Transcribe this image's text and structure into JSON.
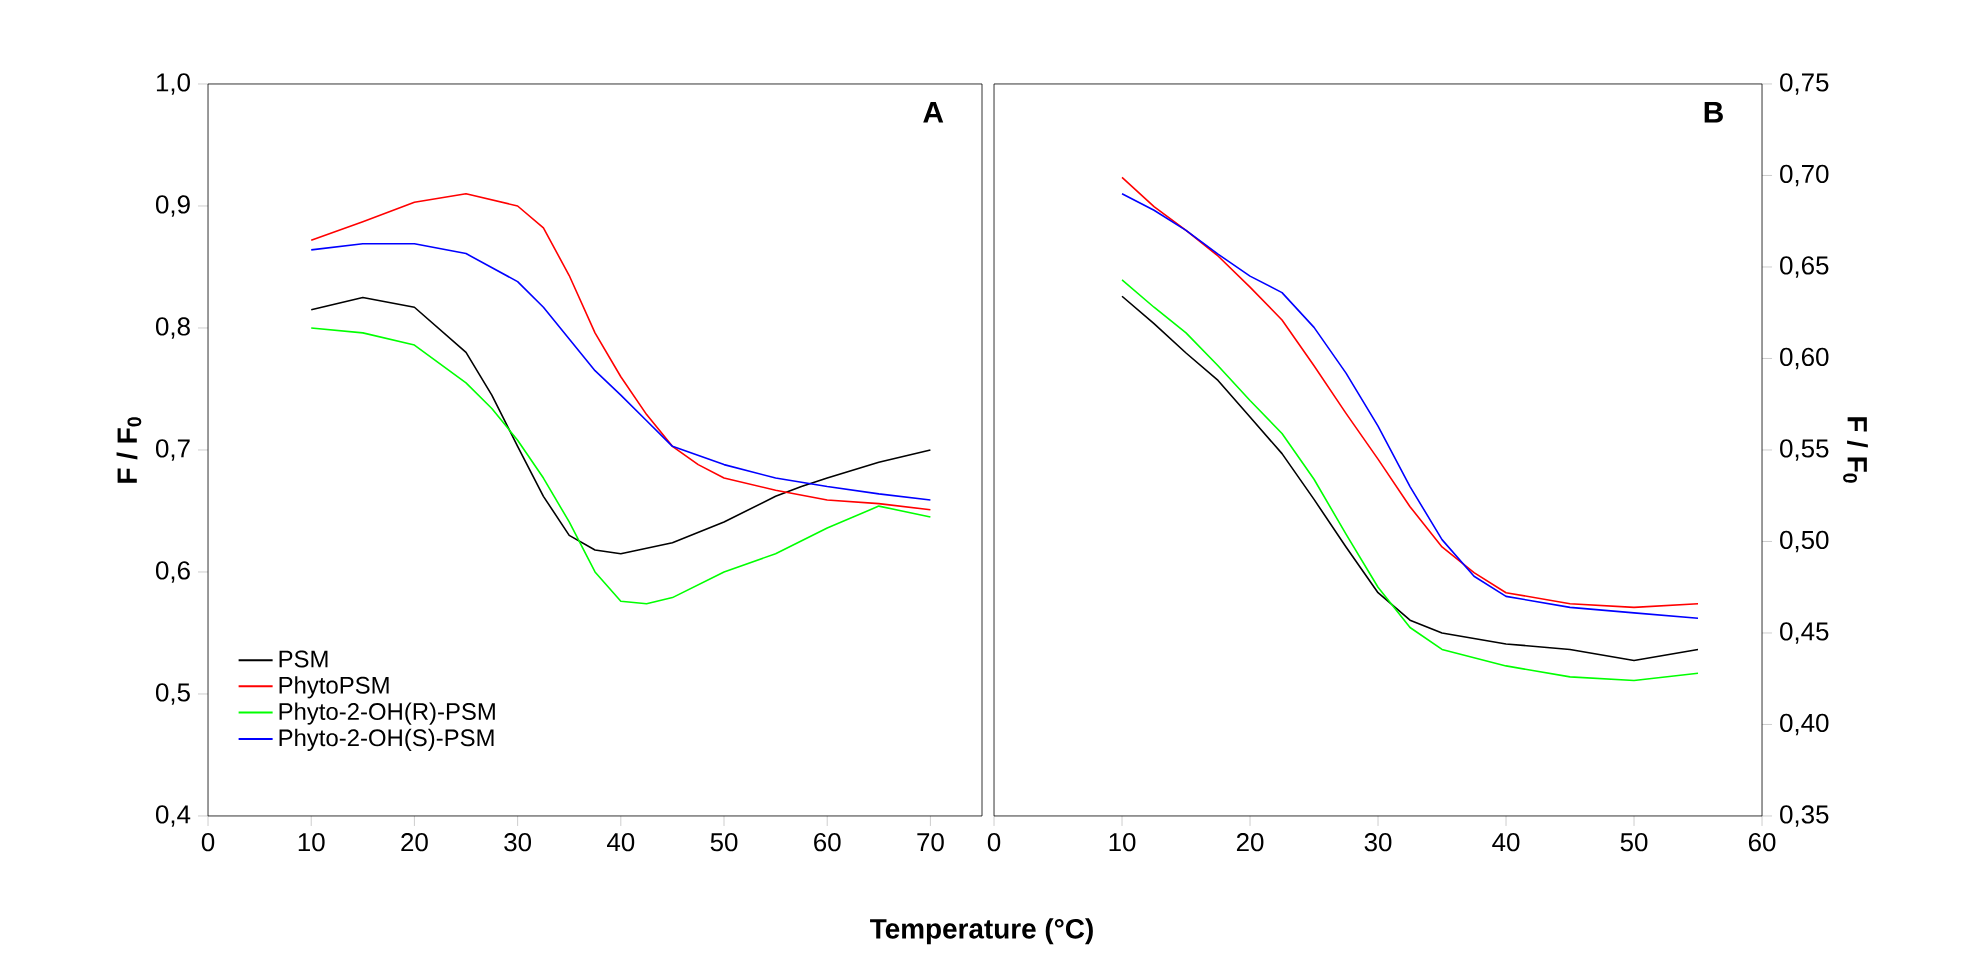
{
  "chart_data": [
    {
      "type": "line",
      "xlabel": "Temperature (°C)",
      "ylabel": "F / F$_{0}$",
      "annotations": [
        "A"
      ],
      "legend": "bottom left",
      "xlim": [
        0,
        75
      ],
      "ylim": [
        0.4,
        1.0
      ],
      "xticks": [
        0,
        10,
        20,
        30,
        40,
        50,
        60,
        70
      ],
      "yticks": [
        {
          "value": 0.4,
          "label": "0,4"
        },
        {
          "value": 0.5,
          "label": "0,5"
        },
        {
          "value": 0.6,
          "label": "0,6"
        },
        {
          "value": 0.7,
          "label": "0,7"
        },
        {
          "value": 0.8,
          "label": "0,8"
        },
        {
          "value": 0.9,
          "label": "0,9"
        },
        {
          "value": 1.0,
          "label": "1,0"
        }
      ],
      "series": [
        {
          "name": "PSM",
          "color": "#000000",
          "x": [
            10,
            15,
            20,
            25,
            27.5,
            30,
            32.5,
            35,
            37.5,
            40,
            45,
            50,
            55,
            57.5,
            60,
            65,
            70
          ],
          "values": [
            0.815,
            0.825,
            0.817,
            0.78,
            0.745,
            0.703,
            0.662,
            0.63,
            0.618,
            0.615,
            0.624,
            0.641,
            0.662,
            0.67,
            0.677,
            0.69,
            0.7
          ]
        },
        {
          "name": "PhytoPSM",
          "color": "#ff0000",
          "x": [
            10,
            15,
            20,
            25,
            30,
            32.5,
            35,
            37.5,
            40,
            42.5,
            45,
            47.5,
            50,
            55,
            60,
            65,
            70
          ],
          "values": [
            0.872,
            0.887,
            0.903,
            0.91,
            0.9,
            0.882,
            0.843,
            0.796,
            0.76,
            0.729,
            0.703,
            0.688,
            0.677,
            0.667,
            0.659,
            0.656,
            0.651
          ]
        },
        {
          "name": "Phyto-2-OH(R)-PSM",
          "color": "#00ff00",
          "x": [
            10,
            15,
            20,
            25,
            27.5,
            30,
            32.5,
            35,
            37.5,
            40,
            42.5,
            45,
            50,
            55,
            60,
            65,
            70
          ],
          "values": [
            0.8,
            0.796,
            0.786,
            0.755,
            0.734,
            0.708,
            0.677,
            0.641,
            0.6,
            0.576,
            0.574,
            0.579,
            0.6,
            0.615,
            0.636,
            0.654,
            0.645
          ]
        },
        {
          "name": "Phyto-2-OH(S)-PSM",
          "color": "#0000ff",
          "x": [
            10,
            15,
            20,
            25,
            30,
            32.5,
            35,
            37.5,
            40,
            42.5,
            45,
            50,
            55,
            60,
            65,
            70
          ],
          "values": [
            0.864,
            0.869,
            0.869,
            0.861,
            0.838,
            0.817,
            0.791,
            0.765,
            0.745,
            0.724,
            0.703,
            0.688,
            0.677,
            0.67,
            0.664,
            0.659
          ]
        }
      ]
    },
    {
      "type": "line",
      "y2label": "F / F$_{0}$",
      "annotations": [
        "B"
      ],
      "xlim": [
        0,
        60
      ],
      "y2lim": [
        0.35,
        0.75
      ],
      "xticks": [
        0,
        10,
        20,
        30,
        40,
        50,
        60
      ],
      "y2ticks": [
        {
          "value": 0.35,
          "label": "0,35"
        },
        {
          "value": 0.4,
          "label": "0,40"
        },
        {
          "value": 0.45,
          "label": "0,45"
        },
        {
          "value": 0.5,
          "label": "0,50"
        },
        {
          "value": 0.55,
          "label": "0,55"
        },
        {
          "value": 0.6,
          "label": "0,60"
        },
        {
          "value": 0.65,
          "label": "0,65"
        },
        {
          "value": 0.7,
          "label": "0,70"
        },
        {
          "value": 0.75,
          "label": "0,75"
        }
      ],
      "series": [
        {
          "color": "#000000",
          "axis": "y2",
          "x": [
            10,
            12.5,
            15,
            17.5,
            20,
            22.5,
            25,
            27.5,
            30,
            32.5,
            35,
            40,
            45,
            50,
            55
          ],
          "values": [
            0.634,
            0.619,
            0.603,
            0.588,
            0.568,
            0.548,
            0.523,
            0.497,
            0.472,
            0.457,
            0.45,
            0.444,
            0.441,
            0.435,
            0.441
          ]
        },
        {
          "color": "#ff0000",
          "axis": "y2",
          "x": [
            10,
            12.5,
            15,
            17.5,
            20,
            22.5,
            25,
            27.5,
            30,
            32.5,
            35,
            37.5,
            40,
            45,
            50,
            55
          ],
          "values": [
            0.699,
            0.683,
            0.67,
            0.656,
            0.639,
            0.621,
            0.596,
            0.57,
            0.545,
            0.519,
            0.497,
            0.483,
            0.472,
            0.466,
            0.464,
            0.466
          ]
        },
        {
          "color": "#00ff00",
          "axis": "y2",
          "x": [
            10,
            12.5,
            15,
            17.5,
            20,
            22.5,
            25,
            27.5,
            30,
            32.5,
            35,
            40,
            45,
            50,
            55
          ],
          "values": [
            0.643,
            0.628,
            0.614,
            0.596,
            0.577,
            0.559,
            0.534,
            0.504,
            0.475,
            0.453,
            0.441,
            0.432,
            0.426,
            0.424,
            0.428
          ]
        },
        {
          "color": "#0000ff",
          "axis": "y2",
          "x": [
            10,
            12.5,
            15,
            17.5,
            20,
            22.5,
            25,
            27.5,
            30,
            32.5,
            35,
            37.5,
            40,
            45,
            50,
            55
          ],
          "values": [
            0.69,
            0.681,
            0.67,
            0.657,
            0.645,
            0.636,
            0.617,
            0.592,
            0.563,
            0.53,
            0.501,
            0.481,
            0.47,
            0.464,
            0.461,
            0.458
          ]
        }
      ]
    }
  ]
}
